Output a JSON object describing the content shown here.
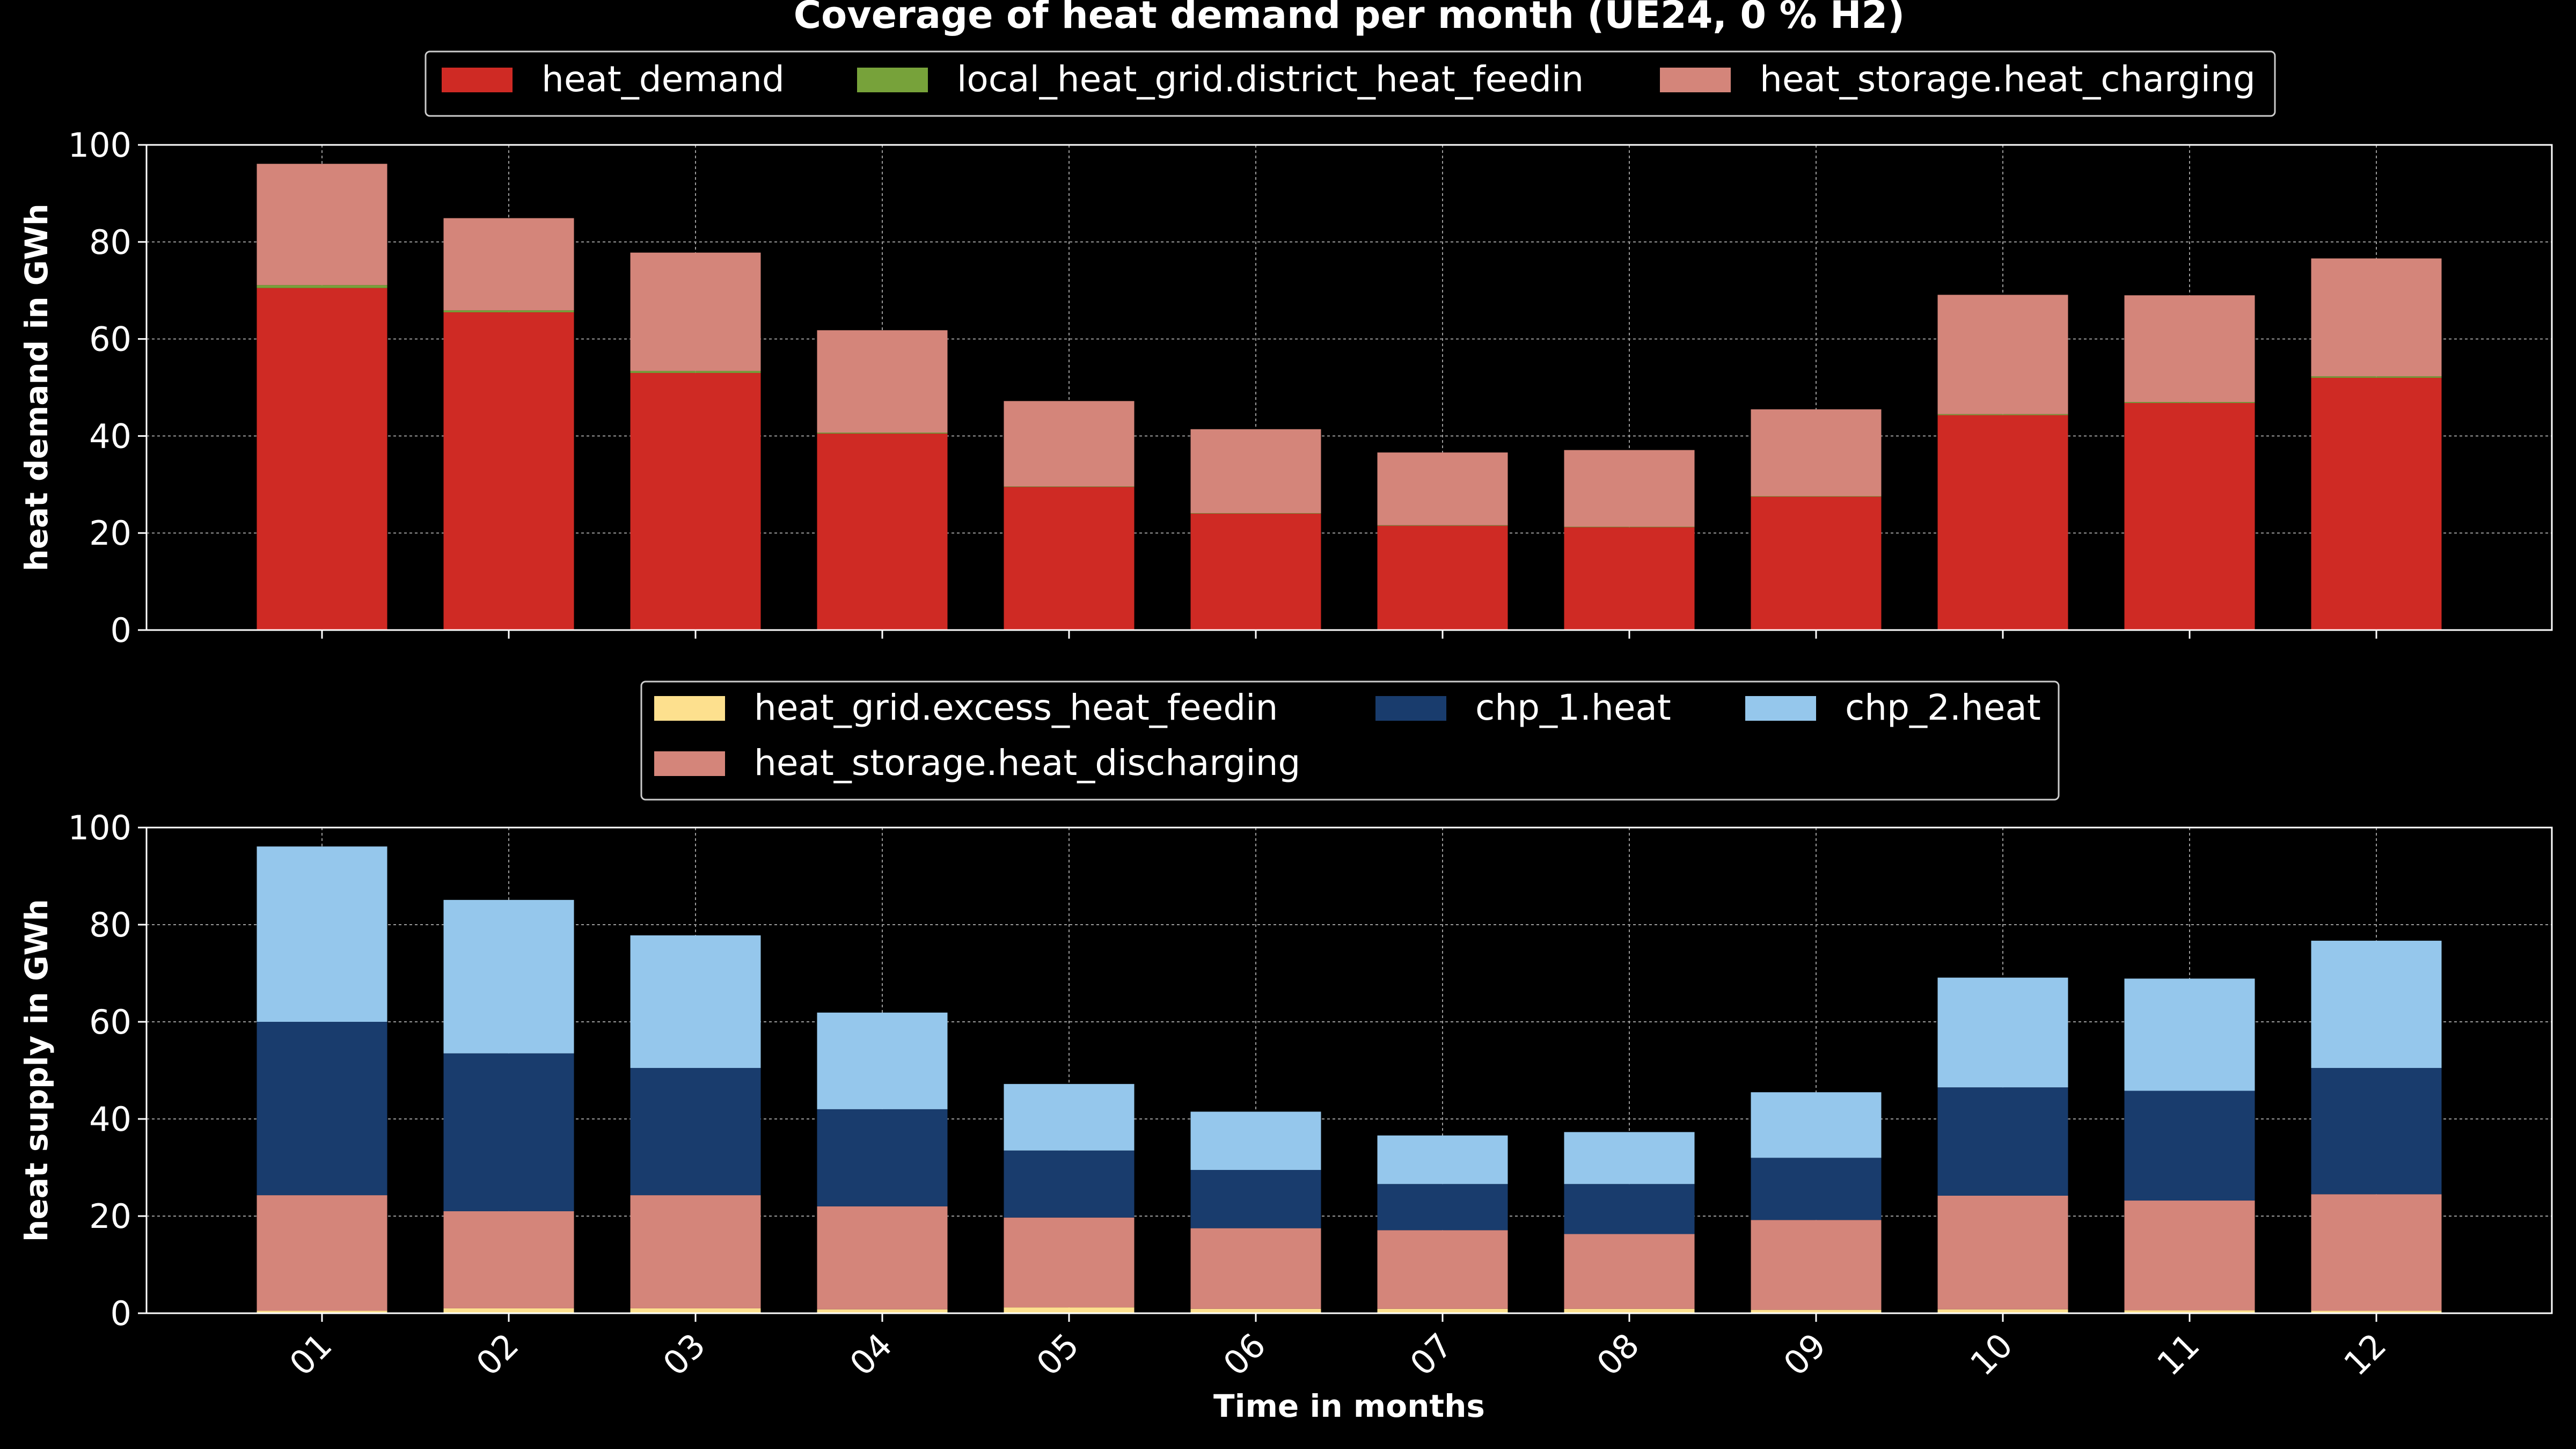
{
  "colors": {
    "background": "#000000",
    "foreground": "#ffffff",
    "grid": "#9a9a9a"
  },
  "chart_data": [
    {
      "type": "bar",
      "stacked": true,
      "title": "Coverage of heat demand per month (UE24, 0 % H2)",
      "xlabel": "",
      "ylabel": "heat demand in GWh",
      "categories": [
        "01",
        "02",
        "03",
        "04",
        "05",
        "06",
        "07",
        "08",
        "09",
        "10",
        "11",
        "12"
      ],
      "ylim": [
        0,
        100
      ],
      "yticks": [
        0,
        20,
        40,
        60,
        80,
        100
      ],
      "grid": true,
      "legend_position": "top",
      "series": [
        {
          "name": "heat_demand",
          "color": "#cf2a24",
          "values": [
            70.5,
            65.5,
            53.0,
            40.5,
            29.5,
            24.0,
            21.5,
            21.2,
            27.5,
            44.3,
            46.8,
            52.0
          ]
        },
        {
          "name": "local_heat_grid.district_heat_feedin",
          "color": "#77a23a",
          "values": [
            0.6,
            0.4,
            0.4,
            0.2,
            0.1,
            0.1,
            0.1,
            0.1,
            0.1,
            0.2,
            0.2,
            0.3
          ]
        },
        {
          "name": "heat_storage.heat_charging",
          "color": "#d4857a",
          "values": [
            25.0,
            19.0,
            24.4,
            21.1,
            17.6,
            17.3,
            15.0,
            15.8,
            17.9,
            24.6,
            22.0,
            24.3
          ]
        }
      ]
    },
    {
      "type": "bar",
      "stacked": true,
      "title": "",
      "xlabel": "Time in months",
      "ylabel": "heat supply in GWh",
      "categories": [
        "01",
        "02",
        "03",
        "04",
        "05",
        "06",
        "07",
        "08",
        "09",
        "10",
        "11",
        "12"
      ],
      "ylim": [
        0,
        100
      ],
      "yticks": [
        0,
        20,
        40,
        60,
        80,
        100
      ],
      "grid": true,
      "legend_position": "top",
      "series": [
        {
          "name": "heat_grid.excess_heat_feedin",
          "color": "#fde08e",
          "values": [
            0.5,
            1.0,
            1.0,
            0.8,
            1.2,
            0.9,
            0.9,
            0.9,
            0.7,
            0.8,
            0.6,
            0.5
          ]
        },
        {
          "name": "heat_storage.heat_discharging",
          "color": "#d4857a",
          "values": [
            23.8,
            20.0,
            23.3,
            21.2,
            18.5,
            16.6,
            16.2,
            15.4,
            18.5,
            23.4,
            22.6,
            24.0
          ]
        },
        {
          "name": "chp_1.heat",
          "color": "#193c6d",
          "values": [
            35.7,
            32.5,
            26.2,
            20.0,
            13.8,
            12.0,
            9.5,
            10.3,
            12.8,
            22.3,
            22.6,
            26.0
          ]
        },
        {
          "name": "chp_2.heat",
          "color": "#95c7ec",
          "values": [
            36.1,
            31.6,
            27.3,
            19.9,
            13.7,
            12.0,
            10.0,
            10.7,
            13.5,
            22.6,
            23.1,
            26.2
          ]
        }
      ]
    }
  ]
}
